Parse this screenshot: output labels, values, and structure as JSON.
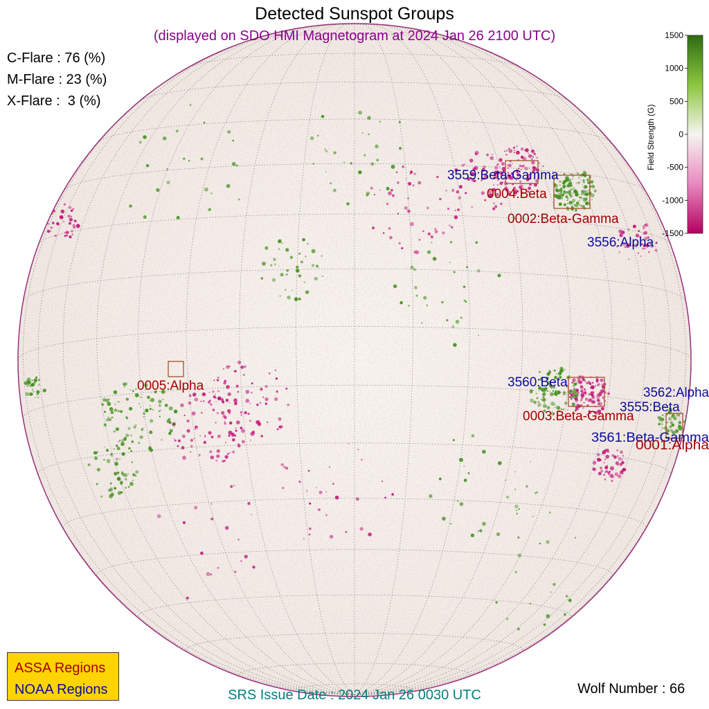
{
  "title": "Detected Sunspot Groups",
  "subtitle": "(displayed on SDO HMI Magnetogram at 2024 Jan 26 2100 UTC)",
  "flare_probabilities": [
    {
      "label": "C-Flare : 76 (%)"
    },
    {
      "label": "M-Flare : 23 (%)"
    },
    {
      "label": "X-Flare :  3 (%)"
    }
  ],
  "colorbar": {
    "title": "Field Strength (G)",
    "ticks": [
      "1500",
      "1000",
      "500",
      "0",
      "-500",
      "-1000",
      "-1500"
    ],
    "positive_color": "#2e6b12",
    "negative_color": "#b5005f"
  },
  "regions": {
    "assa": [
      {
        "label": "0004:Beta"
      },
      {
        "label": "0002:Beta-Gamma"
      },
      {
        "label": "0005:Alpha"
      },
      {
        "label": "0003:Beta-Gamma"
      },
      {
        "label": "0001:Alpha"
      }
    ],
    "noaa": [
      {
        "label": "3559:Beta-Gamma"
      },
      {
        "label": "3556:Alpha"
      },
      {
        "label": "3560:Beta"
      },
      {
        "label": "3562:Alpha"
      },
      {
        "label": "3555:Beta"
      },
      {
        "label": "3561:Beta-Gamma"
      }
    ]
  },
  "legend": {
    "assa": "ASSA Regions",
    "noaa": "NOAA Regions"
  },
  "srs_issue": "SRS Issue Date : 2024 Jan 26 0030 UTC",
  "wolf_number": "Wolf Number : 66",
  "colors": {
    "assa": "#a40000",
    "noaa": "#0a0a9a",
    "legend_bg": "#ffd400",
    "subtitle": "#8b008b",
    "issue": "#008080"
  }
}
